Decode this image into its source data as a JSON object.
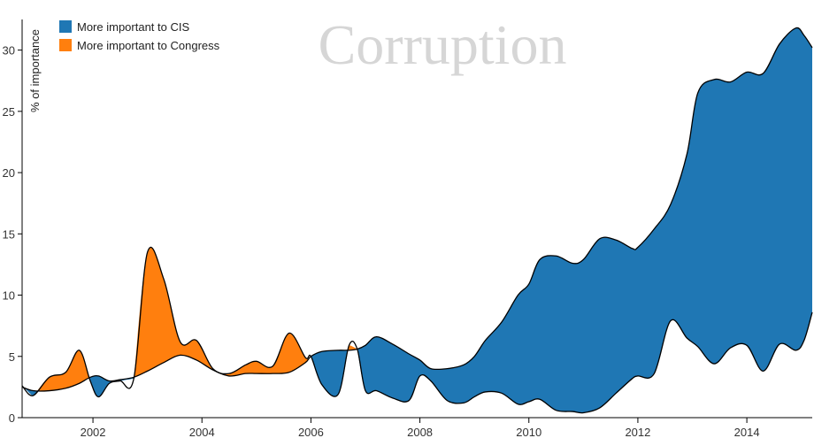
{
  "chart_data": {
    "type": "area",
    "title": "Corruption",
    "xlabel": "",
    "ylabel": "% of importance",
    "xlim": [
      2000.7,
      2015.2
    ],
    "ylim": [
      0,
      32.5
    ],
    "x_ticks": [
      "2002",
      "2004",
      "2006",
      "2008",
      "2010",
      "2012",
      "2014"
    ],
    "y_ticks": [
      "0",
      "5",
      "10",
      "15",
      "20",
      "25",
      "30"
    ],
    "legend_position": "top-left",
    "series": [
      {
        "name": "More important to CIS",
        "color": "#1f77b4",
        "x": [
          2000.7,
          2000.9,
          2001.2,
          2001.5,
          2001.75,
          2001.95,
          2002.1,
          2002.3,
          2002.5,
          2002.75,
          2003.0,
          2003.3,
          2003.6,
          2003.9,
          2004.2,
          2004.5,
          2004.8,
          2005.0,
          2005.3,
          2005.6,
          2005.9,
          2006.0,
          2006.2,
          2006.5,
          2006.7,
          2006.85,
          2007.0,
          2007.2,
          2007.5,
          2007.8,
          2008.0,
          2008.2,
          2008.5,
          2008.8,
          2009.0,
          2009.2,
          2009.5,
          2009.8,
          2010.0,
          2010.2,
          2010.5,
          2010.8,
          2011.0,
          2011.3,
          2011.6,
          2011.9,
          2012.0,
          2012.3,
          2012.6,
          2012.9,
          2013.1,
          2013.4,
          2013.7,
          2014.0,
          2014.3,
          2014.6,
          2014.9,
          2015.05,
          2015.2
        ],
        "values": [
          2.5,
          2.2,
          2.2,
          2.4,
          2.8,
          3.3,
          3.4,
          3.0,
          3.1,
          3.3,
          3.8,
          4.5,
          5.1,
          4.7,
          3.9,
          3.4,
          3.6,
          3.6,
          3.6,
          3.7,
          4.5,
          5.0,
          5.4,
          5.5,
          5.5,
          5.6,
          5.9,
          6.6,
          6.0,
          5.2,
          4.7,
          4.0,
          4.0,
          4.3,
          5.0,
          6.3,
          7.8,
          10.0,
          10.9,
          12.9,
          13.2,
          12.6,
          12.9,
          14.6,
          14.5,
          13.8,
          13.9,
          15.4,
          17.4,
          21.5,
          26.5,
          27.6,
          27.4,
          28.2,
          28.1,
          30.5,
          31.8,
          31.2,
          30.2
        ]
      },
      {
        "name": "More important to Congress",
        "color": "#ff7f0e",
        "x": [
          2000.7,
          2000.9,
          2001.2,
          2001.5,
          2001.75,
          2001.95,
          2002.1,
          2002.3,
          2002.5,
          2002.75,
          2003.0,
          2003.3,
          2003.6,
          2003.9,
          2004.2,
          2004.5,
          2004.8,
          2005.0,
          2005.3,
          2005.6,
          2005.9,
          2006.0,
          2006.2,
          2006.5,
          2006.7,
          2006.85,
          2007.0,
          2007.2,
          2007.5,
          2007.8,
          2008.0,
          2008.2,
          2008.5,
          2008.8,
          2009.0,
          2009.2,
          2009.5,
          2009.8,
          2010.0,
          2010.2,
          2010.5,
          2010.8,
          2011.0,
          2011.3,
          2011.6,
          2011.9,
          2012.0,
          2012.3,
          2012.6,
          2012.9,
          2013.1,
          2013.4,
          2013.7,
          2014.0,
          2014.3,
          2014.6,
          2014.9,
          2015.05,
          2015.2
        ],
        "values": [
          2.6,
          1.8,
          3.3,
          3.7,
          5.5,
          3.0,
          1.7,
          2.8,
          3.0,
          3.2,
          13.5,
          11.3,
          6.2,
          6.3,
          4.0,
          3.6,
          4.3,
          4.6,
          4.2,
          6.9,
          4.9,
          5.0,
          2.7,
          1.9,
          5.9,
          5.6,
          2.2,
          2.2,
          1.6,
          1.4,
          3.4,
          3.0,
          1.4,
          1.2,
          1.7,
          2.1,
          2.0,
          1.1,
          1.3,
          1.5,
          0.6,
          0.5,
          0.4,
          0.8,
          2.0,
          3.2,
          3.4,
          3.6,
          7.9,
          6.5,
          5.8,
          4.4,
          5.7,
          5.9,
          3.8,
          6.0,
          5.5,
          6.3,
          8.6
        ]
      }
    ]
  }
}
